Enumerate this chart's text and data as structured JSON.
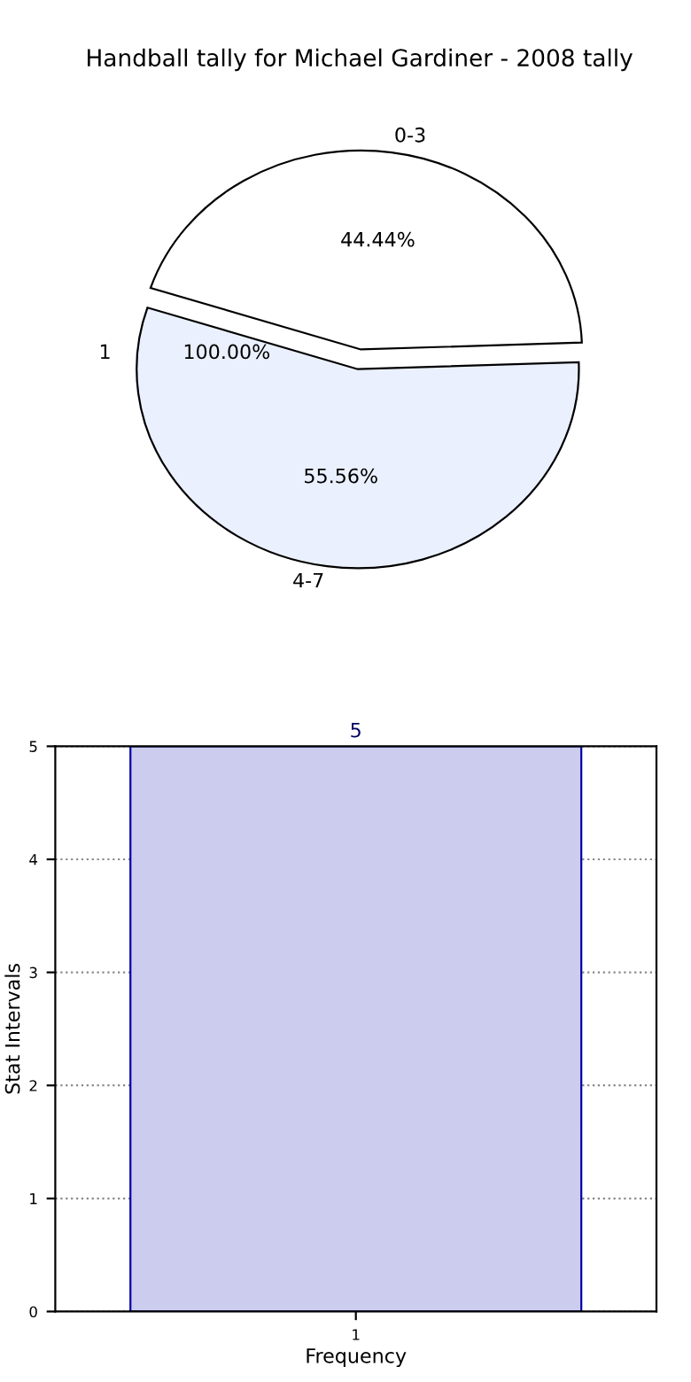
{
  "chart_data": [
    {
      "type": "pie",
      "title": "Handball tally for Michael Gardiner - 2008 tally",
      "categories": [
        "0-3",
        "4-7"
      ],
      "values": [
        44.44,
        55.56
      ],
      "colors": [
        "#ffffff",
        "#eaf0fd"
      ],
      "value_labels": [
        "44.44%",
        "55.56%"
      ],
      "annotations": [
        "1",
        "100.00%"
      ]
    },
    {
      "type": "bar",
      "categories": [
        "1"
      ],
      "values": [
        5
      ],
      "color": "#ccccee",
      "xlabel": "Frequency",
      "ylabel": "Stat Intervals",
      "ylim": [
        0,
        5
      ],
      "yticks": [
        0,
        1,
        2,
        3,
        4,
        5
      ],
      "grid": true,
      "data_labels": true
    }
  ]
}
